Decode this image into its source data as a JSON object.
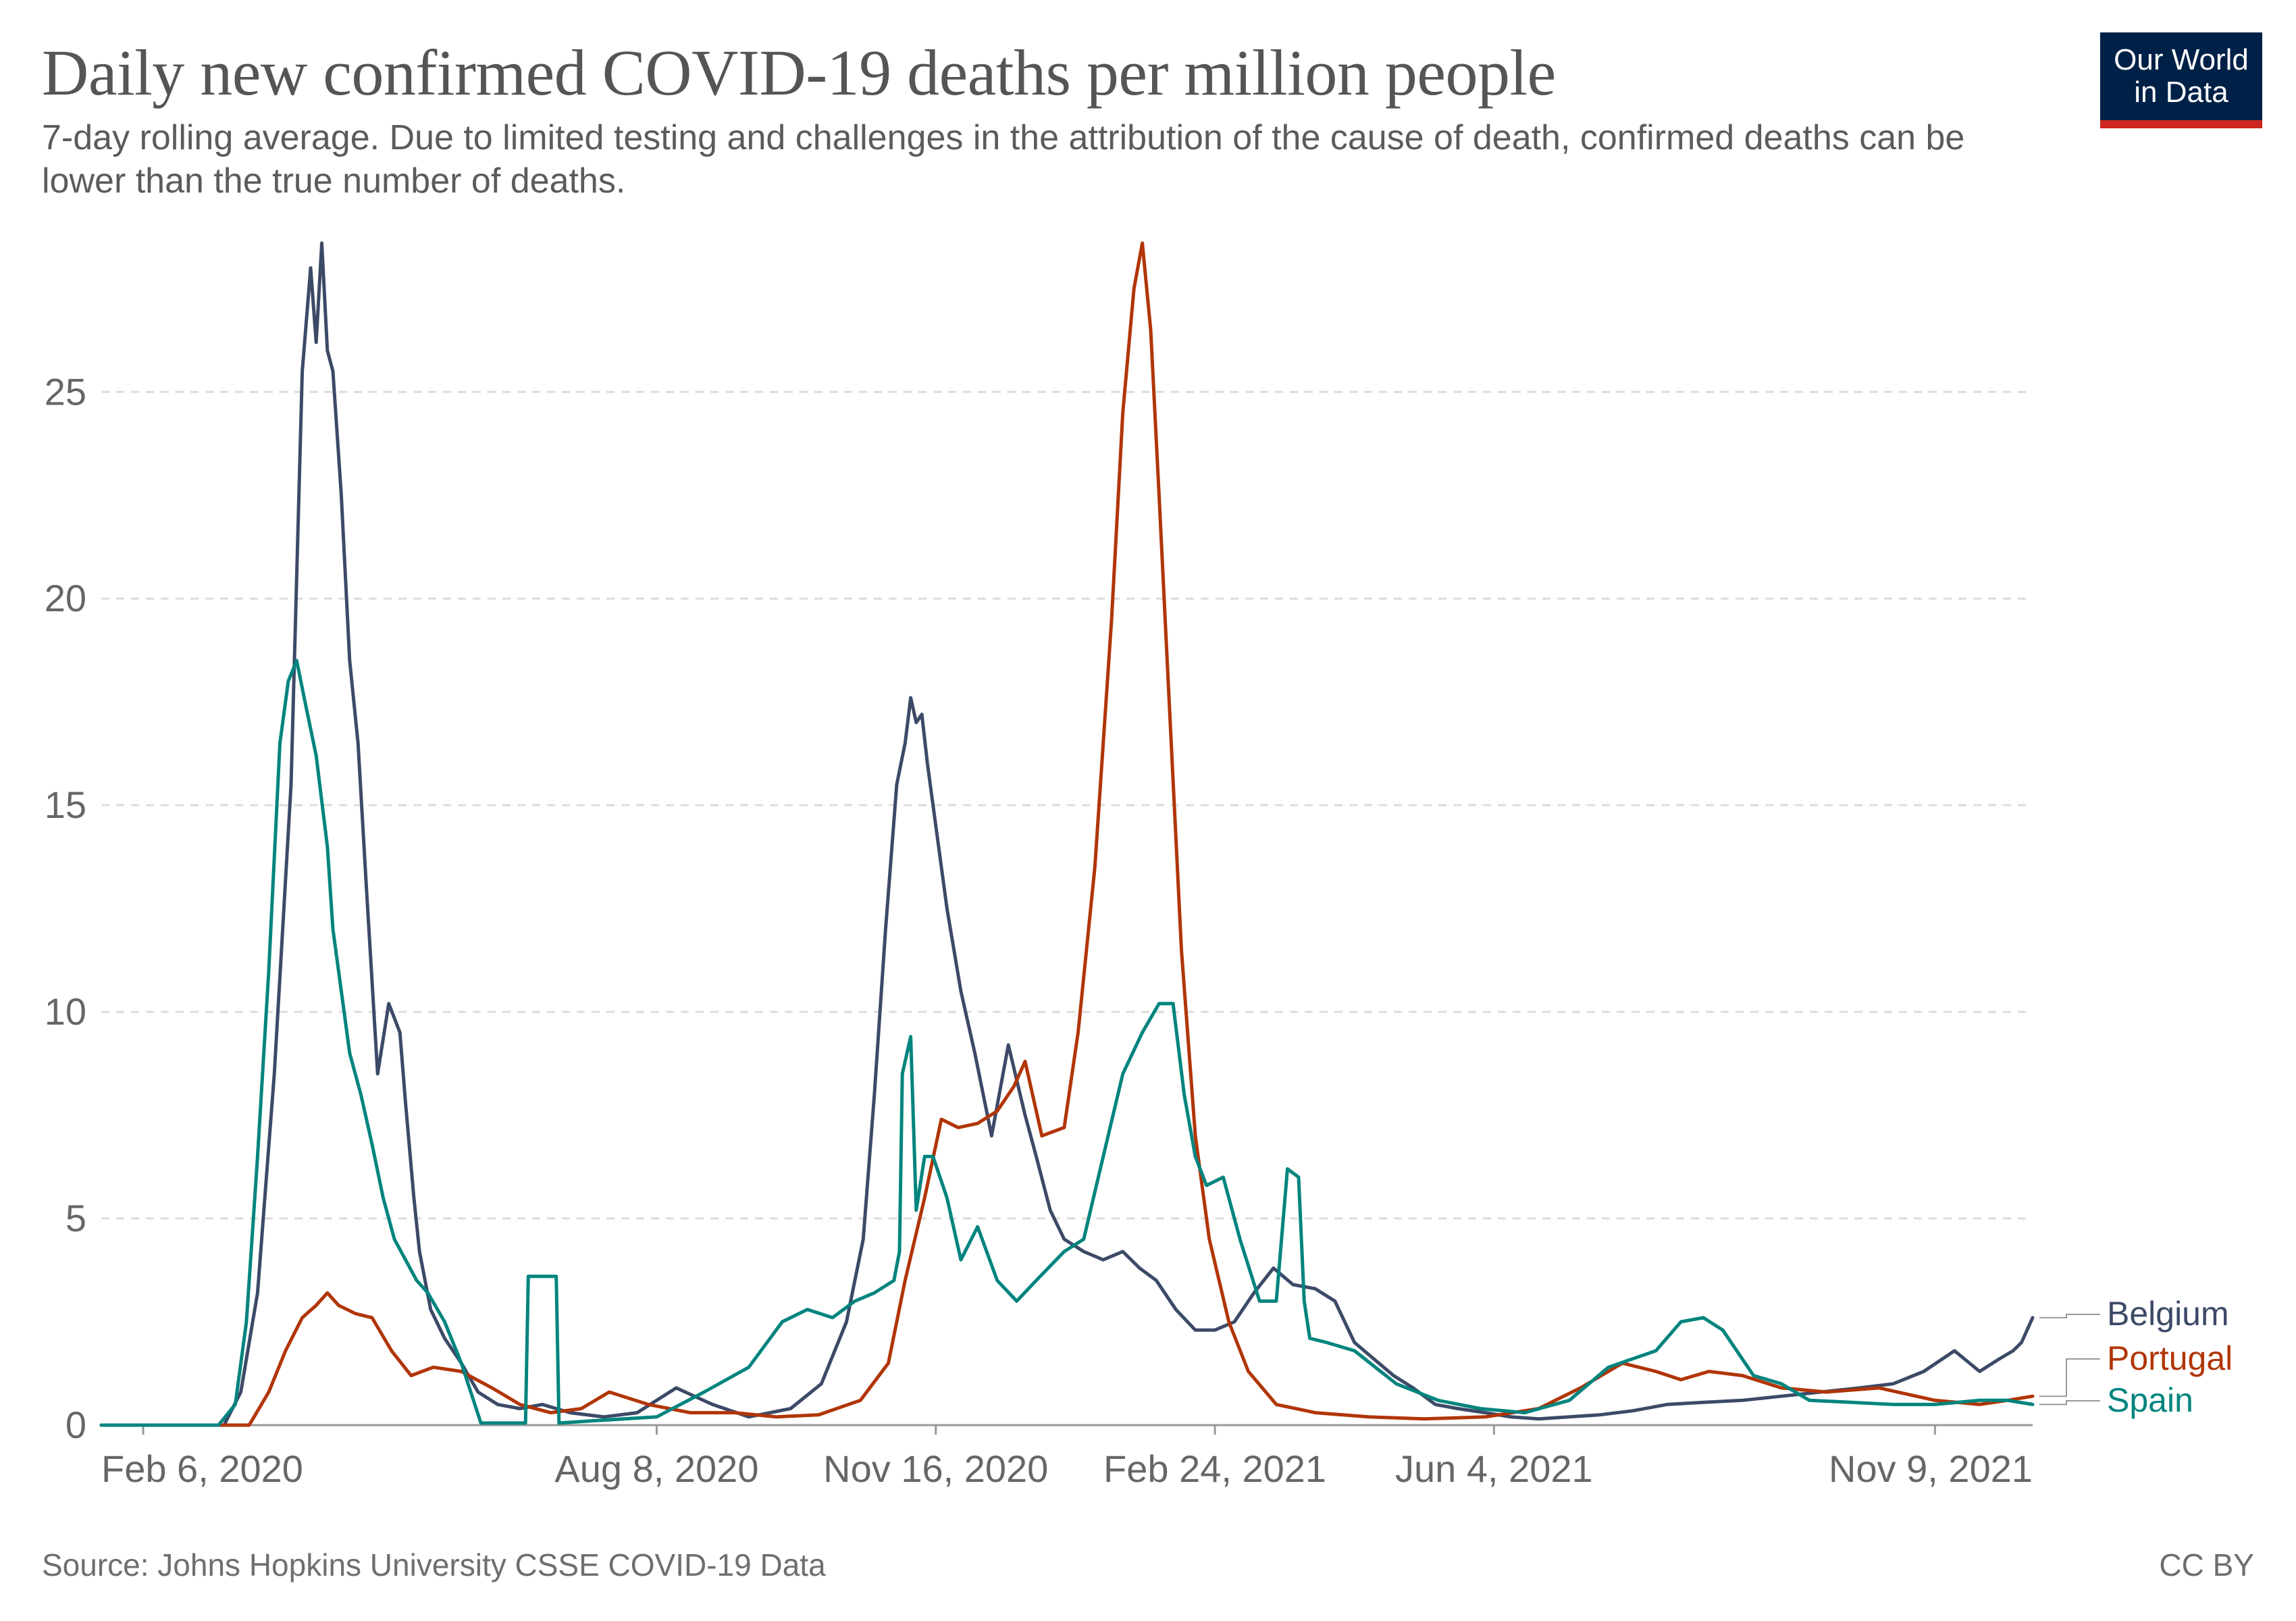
{
  "title": "Daily new confirmed COVID-19 deaths per million people",
  "subtitle": "7-day rolling average. Due to limited testing and challenges in the attribution of the cause of death, confirmed deaths can be lower than the true number of deaths.",
  "logo": {
    "line1": "Our World",
    "line2": "in Data"
  },
  "source": "Source: Johns Hopkins University CSSE COVID-19 Data",
  "license": "CC BY",
  "chart_data": {
    "type": "line",
    "title": "Daily new confirmed COVID-19 deaths per million people",
    "xlabel": "",
    "ylabel": "",
    "ylim": [
      0,
      28.6
    ],
    "xlim": [
      "2020-01-22",
      "2021-12-14"
    ],
    "yticks": [
      0,
      5,
      10,
      15,
      20,
      25
    ],
    "xticks": [
      {
        "date": "2020-02-06",
        "label": "Feb 6, 2020"
      },
      {
        "date": "2020-08-08",
        "label": "Aug 8, 2020"
      },
      {
        "date": "2020-11-16",
        "label": "Nov 16, 2020"
      },
      {
        "date": "2021-02-24",
        "label": "Feb 24, 2021"
      },
      {
        "date": "2021-06-04",
        "label": "Jun 4, 2021"
      },
      {
        "date": "2021-11-09",
        "label": "Nov 9, 2021"
      }
    ],
    "grid": "horizontal dashed",
    "legend": "right end labels",
    "series": [
      {
        "name": "Belgium",
        "color": "#3c4a67",
        "x": [
          "2020-01-22",
          "2020-03-06",
          "2020-03-12",
          "2020-03-18",
          "2020-03-24",
          "2020-03-30",
          "2020-04-03",
          "2020-04-06",
          "2020-04-08",
          "2020-04-10",
          "2020-04-12",
          "2020-04-14",
          "2020-04-17",
          "2020-04-20",
          "2020-04-23",
          "2020-04-26",
          "2020-04-30",
          "2020-05-04",
          "2020-05-08",
          "2020-05-10",
          "2020-05-13",
          "2020-05-15",
          "2020-05-19",
          "2020-05-24",
          "2020-05-30",
          "2020-06-05",
          "2020-06-12",
          "2020-06-20",
          "2020-06-28",
          "2020-07-08",
          "2020-07-20",
          "2020-08-01",
          "2020-08-15",
          "2020-08-28",
          "2020-09-10",
          "2020-09-25",
          "2020-10-06",
          "2020-10-15",
          "2020-10-21",
          "2020-10-25",
          "2020-10-29",
          "2020-11-02",
          "2020-11-05",
          "2020-11-07",
          "2020-11-09",
          "2020-11-11",
          "2020-11-13",
          "2020-11-16",
          "2020-11-20",
          "2020-11-25",
          "2020-11-30",
          "2020-12-06",
          "2020-12-12",
          "2020-12-18",
          "2020-12-22",
          "2020-12-27",
          "2021-01-01",
          "2021-01-08",
          "2021-01-15",
          "2021-01-22",
          "2021-01-28",
          "2021-02-03",
          "2021-02-10",
          "2021-02-17",
          "2021-02-24",
          "2021-03-03",
          "2021-03-10",
          "2021-03-17",
          "2021-03-24",
          "2021-04-01",
          "2021-04-08",
          "2021-04-15",
          "2021-04-22",
          "2021-04-29",
          "2021-05-06",
          "2021-05-14",
          "2021-05-22",
          "2021-06-01",
          "2021-06-10",
          "2021-06-20",
          "2021-07-01",
          "2021-07-12",
          "2021-07-24",
          "2021-08-05",
          "2021-08-18",
          "2021-09-01",
          "2021-09-15",
          "2021-09-29",
          "2021-10-13",
          "2021-10-25",
          "2021-11-05",
          "2021-11-16",
          "2021-11-25",
          "2021-12-02",
          "2021-12-07",
          "2021-12-10",
          "2021-12-14"
        ],
        "values": [
          0,
          0,
          0.8,
          3.2,
          8.5,
          15.5,
          25.5,
          28.0,
          26.2,
          28.6,
          26.0,
          25.5,
          22.5,
          18.5,
          16.5,
          13.0,
          8.5,
          10.2,
          9.5,
          7.8,
          5.5,
          4.2,
          2.8,
          2.1,
          1.5,
          0.8,
          0.5,
          0.4,
          0.5,
          0.3,
          0.2,
          0.3,
          0.9,
          0.5,
          0.2,
          0.4,
          1.0,
          2.5,
          4.5,
          8.0,
          12.0,
          15.5,
          16.5,
          17.6,
          17.0,
          17.2,
          16.0,
          14.5,
          12.5,
          10.5,
          9.0,
          7.0,
          9.2,
          7.5,
          6.5,
          5.2,
          4.5,
          4.2,
          4.0,
          4.2,
          3.8,
          3.5,
          2.8,
          2.3,
          2.3,
          2.5,
          3.2,
          3.8,
          3.4,
          3.3,
          3.0,
          2.0,
          1.6,
          1.2,
          0.9,
          0.5,
          0.4,
          0.3,
          0.2,
          0.15,
          0.2,
          0.25,
          0.35,
          0.5,
          0.55,
          0.6,
          0.7,
          0.8,
          0.9,
          1.0,
          1.3,
          1.8,
          1.3,
          1.6,
          1.8,
          2.0,
          2.6
        ]
      },
      {
        "name": "Portugal",
        "color": "#b13507",
        "x": [
          "2020-01-22",
          "2020-03-15",
          "2020-03-22",
          "2020-03-28",
          "2020-04-03",
          "2020-04-08",
          "2020-04-12",
          "2020-04-16",
          "2020-04-22",
          "2020-04-28",
          "2020-05-05",
          "2020-05-12",
          "2020-05-20",
          "2020-05-30",
          "2020-06-10",
          "2020-06-20",
          "2020-07-01",
          "2020-07-12",
          "2020-07-22",
          "2020-08-05",
          "2020-08-20",
          "2020-09-05",
          "2020-09-20",
          "2020-10-05",
          "2020-10-20",
          "2020-10-30",
          "2020-11-05",
          "2020-11-12",
          "2020-11-18",
          "2020-11-24",
          "2020-12-01",
          "2020-12-08",
          "2020-12-14",
          "2020-12-18",
          "2020-12-24",
          "2021-01-01",
          "2021-01-06",
          "2021-01-12",
          "2021-01-18",
          "2021-01-22",
          "2021-01-26",
          "2021-01-29",
          "2021-02-01",
          "2021-02-04",
          "2021-02-08",
          "2021-02-12",
          "2021-02-17",
          "2021-02-22",
          "2021-03-01",
          "2021-03-08",
          "2021-03-18",
          "2021-04-01",
          "2021-04-20",
          "2021-05-10",
          "2021-06-01",
          "2021-06-20",
          "2021-07-05",
          "2021-07-20",
          "2021-08-01",
          "2021-08-10",
          "2021-08-20",
          "2021-09-01",
          "2021-09-15",
          "2021-10-01",
          "2021-10-20",
          "2021-11-09",
          "2021-11-25",
          "2021-12-05",
          "2021-12-14"
        ],
        "values": [
          0,
          0,
          0.8,
          1.8,
          2.6,
          2.9,
          3.2,
          2.9,
          2.7,
          2.6,
          1.8,
          1.2,
          1.4,
          1.3,
          0.9,
          0.5,
          0.3,
          0.4,
          0.8,
          0.5,
          0.3,
          0.3,
          0.2,
          0.25,
          0.6,
          1.5,
          3.5,
          5.5,
          7.4,
          7.2,
          7.3,
          7.6,
          8.2,
          8.8,
          7.0,
          7.2,
          9.5,
          13.5,
          19.5,
          24.5,
          27.5,
          28.6,
          26.5,
          22.5,
          17.0,
          11.5,
          7.0,
          4.5,
          2.5,
          1.3,
          0.5,
          0.3,
          0.2,
          0.15,
          0.2,
          0.4,
          0.9,
          1.5,
          1.3,
          1.1,
          1.3,
          1.2,
          0.9,
          0.8,
          0.9,
          0.6,
          0.5,
          0.6,
          0.7
        ]
      },
      {
        "name": "Spain",
        "color": "#00847e",
        "x": [
          "2020-01-22",
          "2020-03-04",
          "2020-03-10",
          "2020-03-14",
          "2020-03-18",
          "2020-03-22",
          "2020-03-26",
          "2020-03-29",
          "2020-04-01",
          "2020-04-04",
          "2020-04-08",
          "2020-04-12",
          "2020-04-14",
          "2020-04-17",
          "2020-04-20",
          "2020-04-24",
          "2020-04-28",
          "2020-05-02",
          "2020-05-06",
          "2020-05-10",
          "2020-05-14",
          "2020-05-18",
          "2020-05-24",
          "2020-05-30",
          "2020-06-06",
          "2020-06-12",
          "2020-06-18",
          "2020-06-22",
          "2020-06-23",
          "2020-07-03",
          "2020-07-04",
          "2020-07-15",
          "2020-08-08",
          "2020-08-25",
          "2020-09-10",
          "2020-09-22",
          "2020-10-01",
          "2020-10-10",
          "2020-10-18",
          "2020-10-25",
          "2020-11-01",
          "2020-11-03",
          "2020-11-04",
          "2020-11-07",
          "2020-11-09",
          "2020-11-12",
          "2020-11-15",
          "2020-11-20",
          "2020-11-25",
          "2020-12-01",
          "2020-12-08",
          "2020-12-15",
          "2020-12-22",
          "2021-01-01",
          "2021-01-08",
          "2021-01-15",
          "2021-01-22",
          "2021-01-29",
          "2021-02-04",
          "2021-02-09",
          "2021-02-13",
          "2021-02-17",
          "2021-02-21",
          "2021-02-27",
          "2021-03-05",
          "2021-03-12",
          "2021-03-18",
          "2021-03-22",
          "2021-03-26",
          "2021-03-28",
          "2021-03-30",
          "2021-04-05",
          "2021-04-15",
          "2021-04-30",
          "2021-05-15",
          "2021-05-30",
          "2021-06-15",
          "2021-07-01",
          "2021-07-15",
          "2021-08-01",
          "2021-08-10",
          "2021-08-18",
          "2021-08-25",
          "2021-09-05",
          "2021-09-15",
          "2021-09-25",
          "2021-10-10",
          "2021-10-25",
          "2021-11-09",
          "2021-11-25",
          "2021-12-05",
          "2021-12-14"
        ],
        "values": [
          0,
          0,
          0.5,
          2.5,
          6.5,
          11.0,
          16.5,
          18.0,
          18.5,
          17.5,
          16.2,
          14.0,
          12.0,
          10.5,
          9.0,
          8.0,
          6.8,
          5.5,
          4.5,
          4.0,
          3.5,
          3.2,
          2.5,
          1.5,
          0.05,
          0.05,
          0.05,
          0.05,
          3.6,
          3.6,
          0.05,
          0.1,
          0.2,
          0.8,
          1.4,
          2.5,
          2.8,
          2.6,
          3.0,
          3.2,
          3.5,
          4.2,
          8.5,
          9.4,
          5.2,
          6.5,
          6.5,
          5.5,
          4.0,
          4.8,
          3.5,
          3.0,
          3.5,
          4.2,
          4.5,
          6.5,
          8.5,
          9.5,
          10.2,
          10.2,
          8.0,
          6.5,
          5.8,
          6.0,
          4.5,
          3.0,
          3.0,
          6.2,
          6.0,
          3.0,
          2.1,
          2.0,
          1.8,
          1.0,
          0.6,
          0.4,
          0.3,
          0.6,
          1.4,
          1.8,
          2.5,
          2.6,
          2.3,
          1.2,
          1.0,
          0.6,
          0.55,
          0.5,
          0.5,
          0.6,
          0.6,
          0.5
        ]
      }
    ]
  }
}
